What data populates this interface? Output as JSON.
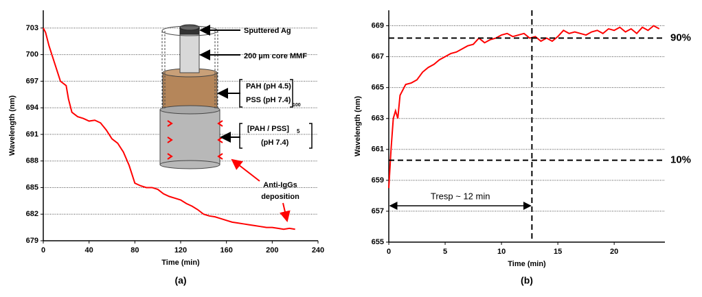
{
  "chart_data": [
    {
      "type": "line",
      "xlabel": "Time (min)",
      "ylabel": "Wavelength (nm)",
      "caption": "(a)",
      "xlim": [
        0,
        240
      ],
      "xticks": [
        0,
        40,
        80,
        120,
        160,
        200,
        240
      ],
      "ylim": [
        679,
        705
      ],
      "yticks": [
        679,
        682,
        685,
        688,
        691,
        694,
        697,
        700,
        703
      ],
      "grid": true,
      "color": "#ff0000",
      "x": [
        0,
        2,
        5,
        10,
        15,
        20,
        22,
        25,
        30,
        35,
        40,
        45,
        50,
        55,
        60,
        65,
        70,
        75,
        80,
        85,
        90,
        95,
        100,
        105,
        110,
        115,
        120,
        125,
        130,
        135,
        140,
        145,
        150,
        155,
        160,
        165,
        170,
        175,
        180,
        185,
        190,
        195,
        200,
        205,
        210,
        215,
        220
      ],
      "values": [
        703,
        702.5,
        701,
        699,
        697,
        696.5,
        695,
        693.5,
        693,
        692.8,
        692.5,
        692.6,
        692.3,
        691.5,
        690.5,
        690,
        689,
        687.5,
        685.5,
        685.2,
        685,
        685,
        684.8,
        684.3,
        684,
        683.8,
        683.6,
        683.2,
        682.9,
        682.5,
        682,
        681.8,
        681.7,
        681.5,
        681.3,
        681.1,
        681,
        680.9,
        680.8,
        680.7,
        680.6,
        680.5,
        680.5,
        680.4,
        680.3,
        680.4,
        680.3
      ],
      "annotations": [
        "Sputtered Ag",
        "200 µm core MMF",
        "PAH (pH 4.5)",
        "PSS (pH 7.4)",
        "100",
        "[PAH / PSS]",
        "5",
        "(pH 7.4)",
        "Anti-IgGs",
        "deposition"
      ]
    },
    {
      "type": "line",
      "xlabel": "Time (min)",
      "ylabel": "Wavelength (nm)",
      "caption": "(b)",
      "xlim": [
        0,
        24.5
      ],
      "xticks": [
        0,
        5,
        10,
        15,
        20
      ],
      "ylim": [
        655,
        670
      ],
      "yticks": [
        655,
        657,
        659,
        661,
        663,
        665,
        667,
        669
      ],
      "grid": true,
      "color": "#ff0000",
      "x": [
        0,
        0.2,
        0.4,
        0.6,
        0.8,
        1,
        1.5,
        2,
        2.5,
        3,
        3.5,
        4,
        4.5,
        5,
        5.5,
        6,
        6.5,
        7,
        7.5,
        8,
        8.5,
        9,
        9.5,
        10,
        10.5,
        11,
        11.5,
        12,
        12.5,
        13,
        13.5,
        14,
        14.5,
        15,
        15.5,
        16,
        16.5,
        17,
        17.5,
        18,
        18.5,
        19,
        19.5,
        20,
        20.5,
        21,
        21.5,
        22,
        22.5,
        23,
        23.5,
        24
      ],
      "values": [
        658.5,
        661,
        663,
        663.5,
        663,
        664.5,
        665.2,
        665.3,
        665.5,
        666,
        666.3,
        666.5,
        666.8,
        667,
        667.2,
        667.3,
        667.5,
        667.7,
        667.8,
        668.2,
        667.9,
        668.1,
        668.2,
        668.4,
        668.5,
        668.3,
        668.4,
        668.5,
        668.2,
        668.3,
        668,
        668.2,
        668,
        668.3,
        668.7,
        668.5,
        668.6,
        668.5,
        668.4,
        668.6,
        668.7,
        668.5,
        668.8,
        668.7,
        668.9,
        668.6,
        668.8,
        668.5,
        668.9,
        668.7,
        669,
        668.8
      ],
      "hlines": [
        {
          "value": 668.2,
          "label": "90%"
        },
        {
          "value": 660.3,
          "label": "10%"
        }
      ],
      "vline": 12.7,
      "annotation": "Tresp ~ 12 min"
    }
  ]
}
